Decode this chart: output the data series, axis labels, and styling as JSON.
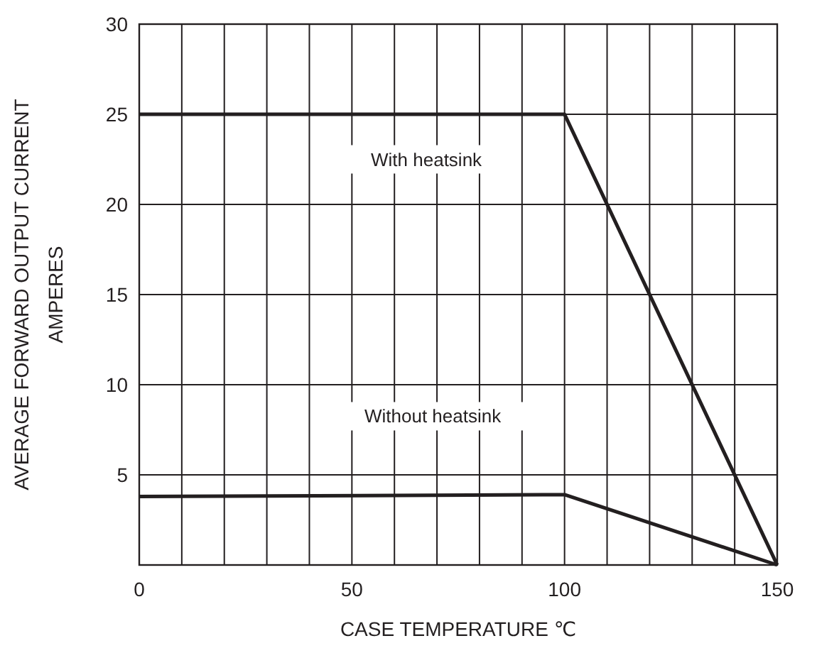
{
  "chart_data": {
    "type": "line",
    "xlabel": "CASE TEMPERATURE ℃",
    "ylabel": "AVERAGE FORWARD OUTPUT CURRENT\nAMPERES",
    "xlim": [
      0,
      150
    ],
    "ylim": [
      0,
      30
    ],
    "xticks": [
      0,
      {
        "value": 10,
        "label": null
      },
      {
        "value": 20,
        "label": null
      },
      {
        "value": 30,
        "label": null
      },
      {
        "value": 40,
        "label": null
      },
      50,
      {
        "value": 60,
        "label": null
      },
      {
        "value": 70,
        "label": null
      },
      {
        "value": 80,
        "label": null
      },
      {
        "value": 90,
        "label": null
      },
      100,
      {
        "value": 110,
        "label": null
      },
      {
        "value": 120,
        "label": null
      },
      {
        "value": 130,
        "label": null
      },
      {
        "value": 140,
        "label": null
      },
      150
    ],
    "yticks": [
      {
        "value": 0,
        "label": null
      },
      5,
      10,
      15,
      20,
      25,
      30
    ],
    "grid": true,
    "marker": "none",
    "line_style": "solid",
    "series": [
      {
        "color": "#231f20",
        "x": [
          0,
          100,
          150
        ],
        "values": [
          25,
          25,
          0
        ]
      },
      {
        "color": "#231f20",
        "x": [
          0,
          100,
          150
        ],
        "values": [
          3.8,
          3.9,
          0
        ]
      }
    ],
    "annotations": [
      "With heatsink",
      "Without heatsink"
    ]
  }
}
